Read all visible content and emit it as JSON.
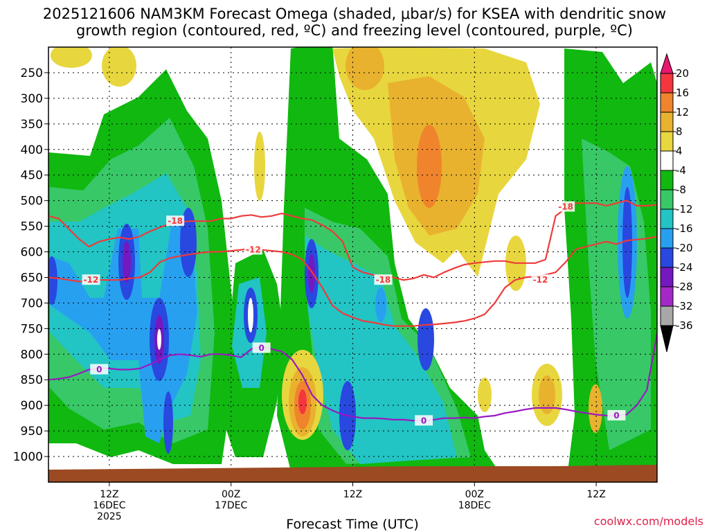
{
  "title_line1": "2025121606 NAM3KM Forecast Omega (shaded, μbar/s) for KSEA with dendritic snow",
  "title_line2": "growth region (contoured, red, ºC) and freezing level (contoured, purple, ºC)",
  "credit": "coolwx.com/models",
  "colorbar": {
    "levels": [
      20,
      16,
      12,
      8,
      4,
      -4,
      -8,
      -12,
      -16,
      -20,
      -24,
      -28,
      -32,
      -36
    ],
    "colors": [
      "#e8186e",
      "#f4363e",
      "#f0842c",
      "#e8b22e",
      "#e8d63e",
      "#ffffff",
      "#10b810",
      "#38c868",
      "#22c4c4",
      "#28a0f0",
      "#2848e0",
      "#7418c0",
      "#a428c8",
      "#a8a8a8",
      "#000000"
    ]
  },
  "chart_data": {
    "type": "heatmap",
    "title": "2025121606 NAM3KM Forecast Omega (shaded, μbar/s) for KSEA with dendritic snow growth region (contoured, red, ºC) and freezing level (contoured, purple, ºC)",
    "xlabel": "Forecast Time (UTC)",
    "ylabel": "",
    "x_ticks": [
      {
        "t": 6,
        "lines": [
          "12Z",
          "16DEC",
          "2025"
        ]
      },
      {
        "t": 18,
        "lines": [
          "00Z",
          "17DEC"
        ]
      },
      {
        "t": 30,
        "lines": [
          "12Z"
        ]
      },
      {
        "t": 42,
        "lines": [
          "00Z",
          "18DEC"
        ]
      },
      {
        "t": 54,
        "lines": [
          "12Z"
        ]
      }
    ],
    "xlim": [
      0,
      60
    ],
    "y_ticks": [
      250,
      300,
      350,
      400,
      450,
      500,
      550,
      600,
      650,
      700,
      750,
      800,
      850,
      900,
      950,
      1000
    ],
    "ylim": [
      1050,
      200
    ],
    "grid": true,
    "contours": [
      {
        "name": "-18",
        "color": "#ee3a3a",
        "x": [
          0,
          1,
          2,
          3,
          4,
          5,
          6,
          7,
          8,
          9,
          10,
          11,
          12,
          13,
          14,
          15,
          16,
          17,
          18,
          19,
          20,
          21,
          22,
          23,
          24,
          25,
          26,
          27,
          28,
          29,
          30,
          31,
          32,
          33,
          34,
          35,
          36,
          37,
          38,
          39,
          40,
          41,
          42,
          43,
          44,
          45,
          46,
          47,
          48,
          49,
          50,
          51,
          52,
          53,
          54,
          55,
          56,
          57,
          58,
          59,
          60
        ],
        "p": [
          530,
          535,
          555,
          575,
          590,
          580,
          575,
          572,
          575,
          570,
          560,
          552,
          545,
          542,
          540,
          540,
          540,
          535,
          535,
          530,
          528,
          532,
          530,
          525,
          530,
          535,
          538,
          548,
          560,
          580,
          630,
          640,
          645,
          648,
          650,
          655,
          652,
          645,
          650,
          640,
          632,
          625,
          622,
          620,
          618,
          618,
          622,
          622,
          622,
          615,
          530,
          515,
          505,
          505,
          505,
          510,
          505,
          500,
          510,
          510,
          508
        ],
        "labels": [
          {
            "x": 12.5,
            "p": 540,
            "text": "-18"
          },
          {
            "x": 33,
            "p": 655,
            "text": "-18"
          },
          {
            "x": 51,
            "p": 512,
            "text": "-18"
          }
        ]
      },
      {
        "name": "-12",
        "color": "#ee3a3a",
        "x": [
          0,
          1,
          2,
          3,
          4,
          5,
          6,
          7,
          8,
          9,
          10,
          11,
          12,
          13,
          14,
          15,
          16,
          17,
          18,
          19,
          20,
          21,
          22,
          23,
          24,
          25,
          26,
          27,
          28,
          29,
          30,
          31,
          32,
          33,
          34,
          35,
          36,
          37,
          38,
          39,
          40,
          41,
          42,
          43,
          44,
          45,
          46,
          47,
          48,
          49,
          50,
          51,
          52,
          53,
          54,
          55,
          56,
          57,
          58,
          59,
          60
        ],
        "p": [
          650,
          652,
          655,
          658,
          658,
          655,
          655,
          655,
          652,
          650,
          640,
          620,
          612,
          608,
          605,
          602,
          600,
          600,
          598,
          596,
          594,
          596,
          598,
          600,
          605,
          615,
          640,
          670,
          705,
          720,
          728,
          735,
          738,
          742,
          745,
          745,
          745,
          743,
          742,
          740,
          738,
          735,
          730,
          722,
          700,
          670,
          655,
          650,
          648,
          645,
          640,
          620,
          595,
          590,
          585,
          580,
          585,
          578,
          576,
          574,
          570
        ],
        "labels": [
          {
            "x": 4.2,
            "p": 655,
            "text": "-12"
          },
          {
            "x": 20.2,
            "p": 596,
            "text": "-12"
          },
          {
            "x": 48.5,
            "p": 655,
            "text": "-12"
          }
        ]
      },
      {
        "name": "0",
        "color": "#9a18c0",
        "x": [
          0,
          1,
          2,
          3,
          4,
          5,
          6,
          7,
          8,
          9,
          10,
          11,
          12,
          13,
          14,
          15,
          16,
          17,
          18,
          19,
          20,
          21,
          22,
          23,
          24,
          25,
          26,
          27,
          28,
          29,
          30,
          31,
          32,
          33,
          34,
          35,
          36,
          37,
          38,
          39,
          40,
          41,
          42,
          43,
          44,
          45,
          46,
          47,
          48,
          49,
          50,
          51,
          52,
          53,
          54,
          55,
          56,
          57,
          58,
          59,
          60
        ],
        "p": [
          850,
          848,
          845,
          838,
          830,
          828,
          828,
          830,
          830,
          828,
          820,
          810,
          802,
          800,
          802,
          805,
          800,
          800,
          802,
          806,
          790,
          785,
          790,
          795,
          810,
          840,
          880,
          900,
          910,
          918,
          922,
          925,
          925,
          926,
          928,
          928,
          930,
          930,
          928,
          925,
          925,
          924,
          925,
          922,
          920,
          915,
          912,
          908,
          905,
          905,
          905,
          908,
          912,
          915,
          918,
          920,
          920,
          918,
          900,
          870,
          760
        ],
        "labels": [
          {
            "x": 5.0,
            "p": 830,
            "text": "0"
          },
          {
            "x": 21.0,
            "p": 788,
            "text": "0"
          },
          {
            "x": 37.0,
            "p": 930,
            "text": "0"
          },
          {
            "x": 56.0,
            "p": 920,
            "text": "0"
          }
        ]
      }
    ]
  }
}
